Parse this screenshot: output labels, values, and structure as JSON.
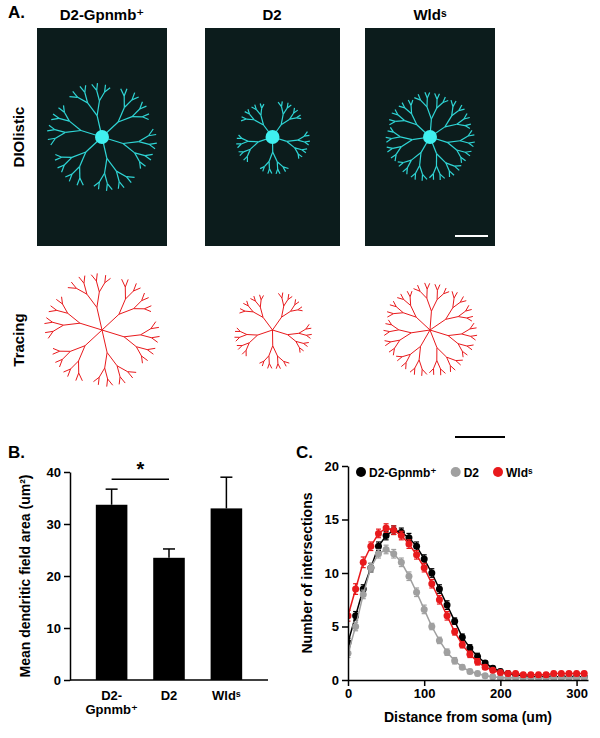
{
  "figure": {
    "panel_label": "A.",
    "image_titles": [
      "D2-Gpnmb⁺",
      "D2",
      "Wldˢ"
    ],
    "row_labels": [
      "DIOlistic",
      "Tracing"
    ]
  },
  "chart_data": [
    {
      "type": "bar",
      "title": "B.",
      "categories": [
        "D2-Gpnmb⁺",
        "D2",
        "Wldˢ"
      ],
      "values": [
        33.7,
        23.5,
        33.0
      ],
      "errors": [
        3.0,
        1.7,
        6.0
      ],
      "color": "#000000",
      "y_label": "Mean dendritic field area (um²)",
      "ylim": [
        0,
        40
      ],
      "yticks": [
        0,
        10,
        20,
        30,
        40
      ],
      "annotations": [
        {
          "text": "*",
          "between": [
            0,
            1
          ]
        }
      ]
    },
    {
      "type": "line",
      "title": "C.",
      "x": [
        0,
        10,
        20,
        30,
        40,
        50,
        60,
        70,
        80,
        90,
        100,
        110,
        120,
        130,
        140,
        150,
        160,
        170,
        180,
        190,
        200,
        210,
        220,
        230,
        240,
        250,
        260,
        270,
        280,
        290,
        300,
        310
      ],
      "series": [
        {
          "name": "D2-Gpnmb⁺",
          "color": "#000000",
          "marker": "circle",
          "values": [
            3.5,
            6.0,
            8.5,
            10.5,
            12.5,
            13.5,
            14.0,
            13.8,
            13.3,
            12.5,
            11.3,
            10.0,
            8.5,
            7.0,
            5.5,
            4.0,
            3.0,
            2.2,
            1.6,
            1.1,
            0.8,
            0.6,
            0.5,
            0.4,
            0.3,
            0.3,
            0.3,
            0.3,
            0.3,
            0.3,
            0.3,
            0.3
          ],
          "errors": [
            0.4,
            0.4,
            0.4,
            0.4,
            0.4,
            0.4,
            0.4,
            0.4,
            0.4,
            0.4,
            0.4,
            0.4,
            0.4,
            0.4,
            0.3,
            0.3,
            0.3,
            0.3,
            0.2,
            0.2,
            0.2,
            0.2,
            0.2,
            0.2,
            0.2,
            0.2,
            0.2,
            0.2,
            0.2,
            0.2,
            0.2,
            0.2
          ]
        },
        {
          "name": "D2",
          "color": "#a0a0a0",
          "marker": "circle",
          "values": [
            2.5,
            5.0,
            8.0,
            10.5,
            11.8,
            12.2,
            11.8,
            11.0,
            9.7,
            8.2,
            6.6,
            5.0,
            3.7,
            2.6,
            1.8,
            1.2,
            0.8,
            0.6,
            0.4,
            0.3,
            0.2,
            0.2,
            0.2,
            0.2,
            0.2,
            0.2,
            0.2,
            0.2,
            0.2,
            0.2,
            0.2,
            0.2
          ],
          "errors": [
            0.4,
            0.4,
            0.4,
            0.4,
            0.4,
            0.4,
            0.4,
            0.4,
            0.4,
            0.4,
            0.4,
            0.3,
            0.3,
            0.3,
            0.3,
            0.2,
            0.2,
            0.2,
            0.2,
            0.2,
            0.1,
            0.1,
            0.1,
            0.1,
            0.1,
            0.1,
            0.1,
            0.1,
            0.1,
            0.1,
            0.1,
            0.1
          ]
        },
        {
          "name": "Wldˢ",
          "color": "#e8191c",
          "marker": "circle",
          "values": [
            6.0,
            8.5,
            11.0,
            12.5,
            13.7,
            14.2,
            14.0,
            13.5,
            12.7,
            11.7,
            10.5,
            9.0,
            7.5,
            6.0,
            4.5,
            3.3,
            2.4,
            1.7,
            1.2,
            0.9,
            0.7,
            0.6,
            0.6,
            0.5,
            0.5,
            0.5,
            0.5,
            0.6,
            0.6,
            0.6,
            0.6,
            0.6
          ],
          "errors": [
            0.5,
            0.5,
            0.5,
            0.4,
            0.4,
            0.4,
            0.4,
            0.4,
            0.4,
            0.4,
            0.4,
            0.4,
            0.4,
            0.4,
            0.3,
            0.3,
            0.3,
            0.3,
            0.2,
            0.2,
            0.2,
            0.2,
            0.2,
            0.2,
            0.2,
            0.2,
            0.2,
            0.2,
            0.2,
            0.2,
            0.2,
            0.2
          ]
        }
      ],
      "x_label": "Distance from soma (um)",
      "y_label": "Number of intersections",
      "xlim": [
        0,
        315
      ],
      "xticks": [
        0,
        100,
        200,
        300
      ],
      "ylim": [
        0,
        20
      ],
      "yticks": [
        0,
        5,
        10,
        15,
        20
      ],
      "legend": "top"
    }
  ]
}
